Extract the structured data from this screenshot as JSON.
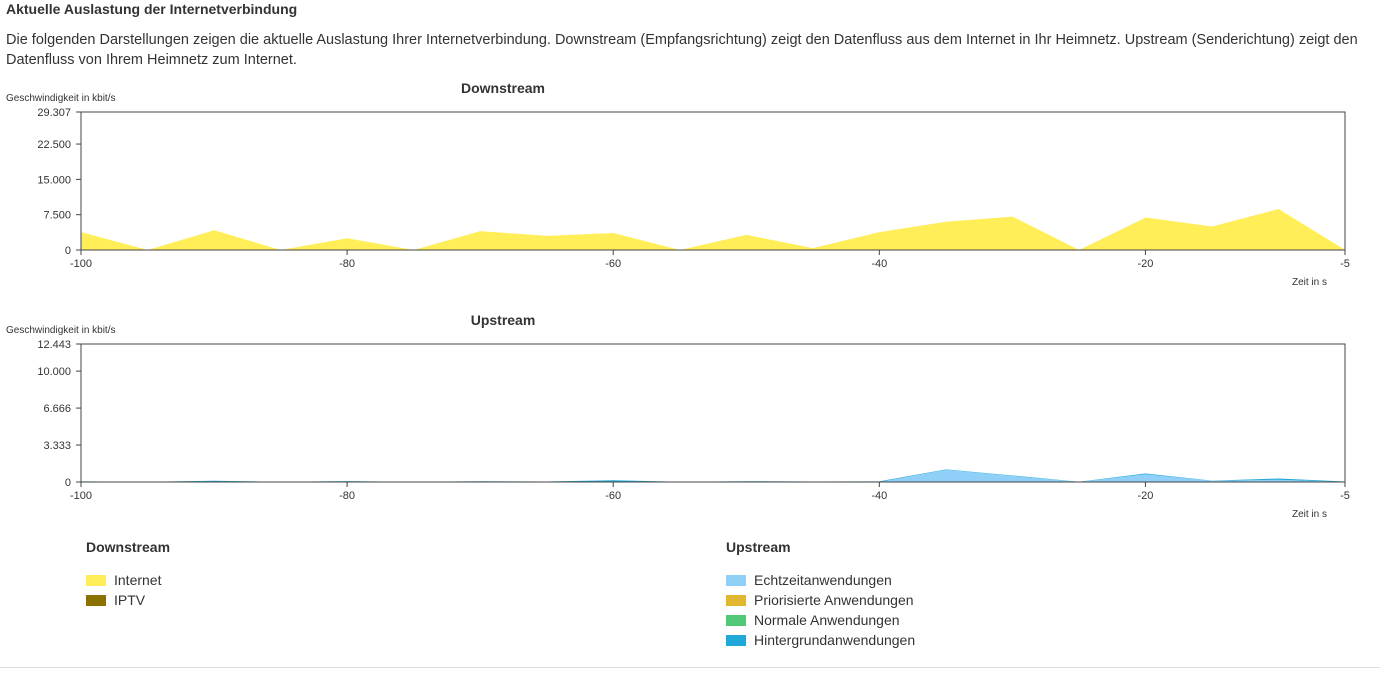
{
  "page": {
    "title": "Aktuelle Auslastung der Internetverbindung",
    "description": "Die folgenden Darstellungen zeigen die aktuelle Auslastung Ihrer Internetverbindung. Downstream (Empfangsrichtung) zeigt den Datenfluss aus dem Internet in Ihr Heimnetz. Upstream (Senderichtung) zeigt den Datenfluss von Ihrem Heimnetz zum Internet."
  },
  "legend": {
    "downstream": {
      "title": "Downstream",
      "items": [
        {
          "label": "Internet",
          "color": "#ffee58"
        },
        {
          "label": "IPTV",
          "color": "#8c7000"
        }
      ]
    },
    "upstream": {
      "title": "Upstream",
      "items": [
        {
          "label": "Echtzeitanwendungen",
          "color": "#90d0f8"
        },
        {
          "label": "Priorisierte Anwendungen",
          "color": "#e0b830"
        },
        {
          "label": "Normale Anwendungen",
          "color": "#50c878"
        },
        {
          "label": "Hintergrundanwendungen",
          "color": "#20a8d8"
        }
      ]
    }
  },
  "chart_data": [
    {
      "type": "area",
      "title": "Downstream",
      "ylabel": "Geschwindigkeit in kbit/s",
      "xlabel": "Zeit in s",
      "xlim": [
        -100,
        -5
      ],
      "ylim": [
        0,
        29307
      ],
      "x_ticks": [
        -100,
        -80,
        -60,
        -40,
        -20,
        -5
      ],
      "y_ticks": [
        0,
        7500,
        15000,
        22500,
        29307
      ],
      "y_tick_labels": [
        "0",
        "7.500",
        "15.000",
        "22.500",
        "29.307"
      ],
      "grid": false,
      "x": [
        -100,
        -95,
        -90,
        -85,
        -80,
        -75,
        -70,
        -65,
        -60,
        -55,
        -50,
        -45,
        -40,
        -35,
        -30,
        -25,
        -20,
        -15,
        -10,
        -5
      ],
      "series": [
        {
          "name": "Internet",
          "color": "#ffee58",
          "values": [
            3800,
            0,
            4200,
            0,
            2500,
            0,
            4000,
            3000,
            3600,
            0,
            3200,
            400,
            3800,
            6000,
            7100,
            0,
            6900,
            5000,
            8700,
            0
          ]
        },
        {
          "name": "IPTV",
          "color": "#8c7000",
          "values": [
            0,
            0,
            0,
            0,
            0,
            0,
            0,
            0,
            0,
            0,
            0,
            0,
            0,
            0,
            0,
            0,
            0,
            0,
            0,
            0
          ]
        }
      ]
    },
    {
      "type": "area",
      "title": "Upstream",
      "ylabel": "Geschwindigkeit in kbit/s",
      "xlabel": "Zeit in s",
      "xlim": [
        -100,
        -5
      ],
      "ylim": [
        0,
        12443
      ],
      "x_ticks": [
        -100,
        -80,
        -60,
        -40,
        -20,
        -5
      ],
      "y_ticks": [
        0,
        3333,
        6666,
        10000,
        12443
      ],
      "y_tick_labels": [
        "0",
        "3.333",
        "6.666",
        "10.000",
        "12.443"
      ],
      "grid": false,
      "x": [
        -100,
        -95,
        -90,
        -85,
        -80,
        -75,
        -70,
        -65,
        -60,
        -55,
        -50,
        -45,
        -40,
        -35,
        -30,
        -25,
        -20,
        -15,
        -10,
        -5
      ],
      "series": [
        {
          "name": "Echtzeitanwendungen",
          "color": "#90d0f8",
          "values": [
            0,
            0,
            0,
            0,
            0,
            0,
            0,
            0,
            0,
            0,
            0,
            0,
            0,
            1100,
            550,
            0,
            700,
            100,
            200,
            0
          ]
        },
        {
          "name": "Priorisierte Anwendungen",
          "color": "#e0b830",
          "values": [
            0,
            0,
            0,
            0,
            0,
            0,
            0,
            0,
            0,
            0,
            0,
            0,
            0,
            0,
            0,
            0,
            0,
            0,
            0,
            0
          ]
        },
        {
          "name": "Normale Anwendungen",
          "color": "#50c878",
          "values": [
            0,
            0,
            0,
            0,
            0,
            0,
            0,
            0,
            0,
            0,
            0,
            0,
            0,
            0,
            0,
            0,
            0,
            0,
            0,
            0
          ]
        },
        {
          "name": "Hintergrundanwendungen",
          "color": "#20a8d8",
          "values": [
            60,
            20,
            110,
            20,
            80,
            20,
            70,
            40,
            160,
            20,
            70,
            40,
            60,
            40,
            40,
            20,
            70,
            20,
            120,
            40
          ]
        }
      ]
    }
  ]
}
